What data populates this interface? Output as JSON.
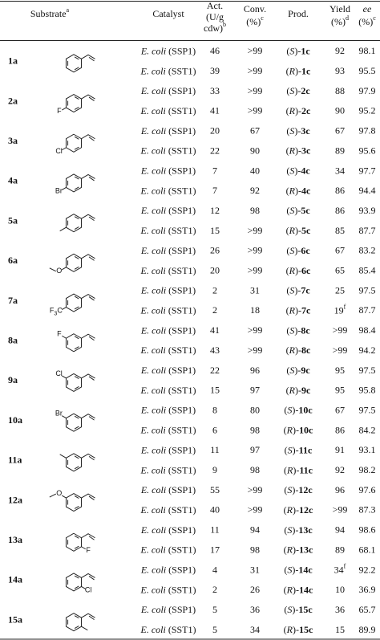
{
  "table": {
    "header": [
      {
        "lines": [
          "Substrate"
        ],
        "note": "a"
      },
      {
        "lines": [
          "Catalyst"
        ]
      },
      {
        "lines": [
          "Act.",
          "(U/g",
          "cdw)"
        ],
        "note": "b"
      },
      {
        "lines": [
          "Conv.",
          "(%)"
        ],
        "note": "c"
      },
      {
        "lines": [
          "Prod."
        ]
      },
      {
        "lines": [
          "Yield",
          "(%)"
        ],
        "note": "d"
      },
      {
        "lines": [
          "ee",
          "(%)"
        ],
        "note": "c"
      }
    ],
    "groups": [
      {
        "id": "1a",
        "substituent": null,
        "runs": [
          {
            "catalyst": "E. coli (SSP1)",
            "act": 46,
            "conv": ">99",
            "product": "(S)-1c",
            "yield": 92,
            "ee": 98.1
          },
          {
            "catalyst": "E. coli (SST1)",
            "act": 39,
            "conv": ">99",
            "product": "(R)-1c",
            "yield": 93,
            "ee": 95.5
          }
        ]
      },
      {
        "id": "2a",
        "substituent": "F",
        "runs": [
          {
            "catalyst": "E. coli (SSP1)",
            "act": 33,
            "conv": ">99",
            "product": "(S)-2c",
            "yield": 88,
            "ee": 97.9
          },
          {
            "catalyst": "E. coli (SST1)",
            "act": 41,
            "conv": ">99",
            "product": "(R)-2c",
            "yield": 90,
            "ee": 95.2
          }
        ]
      },
      {
        "id": "3a",
        "substituent": "Cl",
        "runs": [
          {
            "catalyst": "E. coli (SSP1)",
            "act": 20,
            "conv": 67,
            "product": "(S)-3c",
            "yield": 67,
            "ee": 97.8
          },
          {
            "catalyst": "E. coli (SST1)",
            "act": 22,
            "conv": 90,
            "product": "(R)-3c",
            "yield": 89,
            "ee": 95.6
          }
        ]
      },
      {
        "id": "4a",
        "substituent": "Br",
        "runs": [
          {
            "catalyst": "E. coli (SSP1)",
            "act": 7,
            "conv": 40,
            "product": "(S)-4c",
            "yield": 34,
            "ee": 97.7
          },
          {
            "catalyst": "E. coli (SST1)",
            "act": 7,
            "conv": 92,
            "product": "(R)-4c",
            "yield": 86,
            "ee": 94.4
          }
        ]
      },
      {
        "id": "5a",
        "substituent": null,
        "runs": [
          {
            "catalyst": "E. coli (SSP1)",
            "act": 12,
            "conv": 98,
            "product": "(S)-5c",
            "yield": 86,
            "ee": 93.9
          },
          {
            "catalyst": "E. coli (SST1)",
            "act": 15,
            "conv": ">99",
            "product": "(R)-5c",
            "yield": 85,
            "ee": 87.7
          }
        ]
      },
      {
        "id": "6a",
        "substituent": "O",
        "runs": [
          {
            "catalyst": "E. coli (SSP1)",
            "act": 26,
            "conv": ">99",
            "product": "(S)-6c",
            "yield": 67,
            "ee": 83.2
          },
          {
            "catalyst": "E. coli (SST1)",
            "act": 20,
            "conv": ">99",
            "product": "(R)-6c",
            "yield": 65,
            "ee": 85.4
          }
        ]
      },
      {
        "id": "7a",
        "substituent": "F3C",
        "runs": [
          {
            "catalyst": "E. coli (SSP1)",
            "act": 2,
            "conv": 31,
            "product": "(S)-7c",
            "yield": 25,
            "ee": 97.5
          },
          {
            "catalyst": "E. coli (SST1)",
            "act": 2,
            "conv": 18,
            "product": "(R)-7c",
            "yield": {
              "value": 19,
              "note": "f"
            },
            "ee": 87.7
          }
        ]
      },
      {
        "id": "8a",
        "substituent": "F",
        "runs": [
          {
            "catalyst": "E. coli (SSP1)",
            "act": 41,
            "conv": ">99",
            "product": "(S)-8c",
            "yield": ">99",
            "ee": 98.4
          },
          {
            "catalyst": "E. coli (SST1)",
            "act": 43,
            "conv": ">99",
            "product": "(R)-8c",
            "yield": ">99",
            "ee": 94.2
          }
        ]
      },
      {
        "id": "9a",
        "substituent": "Cl",
        "runs": [
          {
            "catalyst": "E. coli (SSP1)",
            "act": 22,
            "conv": 96,
            "product": "(S)-9c",
            "yield": 95,
            "ee": 97.5
          },
          {
            "catalyst": "E. coli (SST1)",
            "act": 15,
            "conv": 97,
            "product": "(R)-9c",
            "yield": 95,
            "ee": 95.8
          }
        ]
      },
      {
        "id": "10a",
        "substituent": "Br",
        "runs": [
          {
            "catalyst": "E. coli (SSP1)",
            "act": 8,
            "conv": 80,
            "product": "(S)-10c",
            "yield": 67,
            "ee": 97.5
          },
          {
            "catalyst": "E. coli (SST1)",
            "act": 6,
            "conv": 98,
            "product": "(R)-10c",
            "yield": 86,
            "ee": 84.2
          }
        ]
      },
      {
        "id": "11a",
        "substituent": null,
        "runs": [
          {
            "catalyst": "E. coli (SSP1)",
            "act": 11,
            "conv": 97,
            "product": "(S)-11c",
            "yield": 91,
            "ee": 93.1
          },
          {
            "catalyst": "E. coli (SST1)",
            "act": 9,
            "conv": 98,
            "product": "(R)-11c",
            "yield": 92,
            "ee": 98.2
          }
        ]
      },
      {
        "id": "12a",
        "substituent": "O",
        "runs": [
          {
            "catalyst": "E. coli (SSP1)",
            "act": 55,
            "conv": ">99",
            "product": "(S)-12c",
            "yield": 96,
            "ee": 97.6
          },
          {
            "catalyst": "E. coli (SST1)",
            "act": 40,
            "conv": ">99",
            "product": "(R)-12c",
            "yield": ">99",
            "ee": 87.3
          }
        ]
      },
      {
        "id": "13a",
        "substituent": "F",
        "runs": [
          {
            "catalyst": "E. coli (SSP1)",
            "act": 11,
            "conv": 94,
            "product": "(S)-13c",
            "yield": 94,
            "ee": 98.6
          },
          {
            "catalyst": "E. coli (SST1)",
            "act": 17,
            "conv": 98,
            "product": "(R)-13c",
            "yield": 89,
            "ee": 68.1
          }
        ]
      },
      {
        "id": "14a",
        "substituent": "Cl",
        "runs": [
          {
            "catalyst": "E. coli (SSP1)",
            "act": 4,
            "conv": 31,
            "product": "(S)-14c",
            "yield": {
              "value": 34,
              "note": "f"
            },
            "ee": 92.2
          },
          {
            "catalyst": "E. coli (SST1)",
            "act": 2,
            "conv": 26,
            "product": "(R)-14c",
            "yield": 10,
            "ee": 36.9
          }
        ]
      },
      {
        "id": "15a",
        "substituent": null,
        "runs": [
          {
            "catalyst": "E. coli (SSP1)",
            "act": 5,
            "conv": 36,
            "product": "(S)-15c",
            "yield": 36,
            "ee": 65.7
          },
          {
            "catalyst": "E. coli (SST1)",
            "act": 5,
            "conv": 34,
            "product": "(R)-15c",
            "yield": 15,
            "ee": 89.9
          }
        ]
      }
    ]
  }
}
